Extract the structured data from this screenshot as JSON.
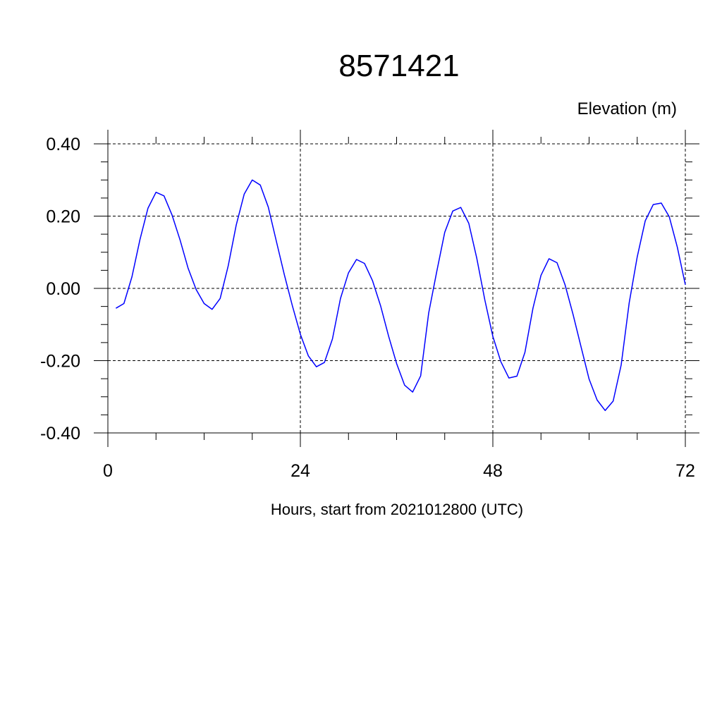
{
  "chart_data": {
    "type": "line",
    "title": "8571421",
    "ylabel": "Elevation (m)",
    "xlabel": "Hours, start from 2021012800 (UTC)",
    "xlim": [
      0,
      72
    ],
    "ylim": [
      -0.4,
      0.4
    ],
    "x_ticks": [
      0,
      24,
      48,
      72
    ],
    "x_tick_labels": [
      "0",
      "24",
      "48",
      "72"
    ],
    "y_ticks": [
      0.4,
      0.2,
      0.0,
      -0.2,
      -0.4
    ],
    "y_tick_labels": [
      "0.40",
      "0.20",
      "0.00",
      "-0.20",
      "-0.40"
    ],
    "grid": true,
    "series": [
      {
        "color": "#0000ff",
        "x": [
          1,
          2,
          3,
          4,
          5,
          6,
          7,
          8,
          9,
          10,
          11,
          12,
          13,
          14,
          15,
          16,
          17,
          18,
          19,
          20,
          21,
          22,
          23,
          24,
          25,
          26,
          27,
          28,
          29,
          30,
          31,
          32,
          33,
          34,
          35,
          36,
          37,
          38,
          39,
          40,
          41,
          42,
          43,
          44,
          45,
          46,
          47,
          48,
          49,
          50,
          51,
          52,
          53,
          54,
          55,
          56,
          57,
          58,
          59,
          60,
          61,
          62,
          63,
          64,
          65,
          66,
          67,
          68,
          69,
          70,
          71,
          72
        ],
        "y": [
          -0.055,
          -0.042,
          0.032,
          0.135,
          0.222,
          0.266,
          0.256,
          0.203,
          0.134,
          0.056,
          -0.003,
          -0.042,
          -0.058,
          -0.028,
          0.062,
          0.175,
          0.261,
          0.3,
          0.286,
          0.225,
          0.131,
          0.038,
          -0.048,
          -0.127,
          -0.187,
          -0.217,
          -0.205,
          -0.14,
          -0.028,
          0.043,
          0.08,
          0.069,
          0.021,
          -0.048,
          -0.132,
          -0.208,
          -0.268,
          -0.287,
          -0.242,
          -0.068,
          0.046,
          0.155,
          0.214,
          0.224,
          0.18,
          0.083,
          -0.032,
          -0.133,
          -0.203,
          -0.248,
          -0.243,
          -0.177,
          -0.055,
          0.036,
          0.082,
          0.071,
          0.01,
          -0.072,
          -0.162,
          -0.251,
          -0.309,
          -0.338,
          -0.312,
          -0.212,
          -0.04,
          0.087,
          0.187,
          0.232,
          0.236,
          0.198,
          0.114,
          0.01
        ]
      }
    ]
  }
}
